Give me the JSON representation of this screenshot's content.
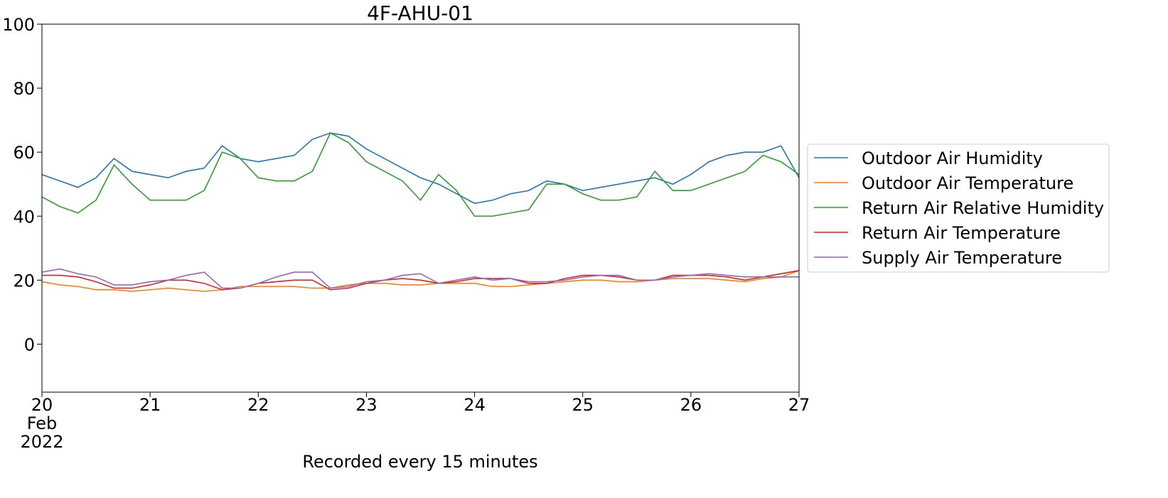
{
  "chart_data": {
    "type": "line",
    "title": "4F-AHU-01",
    "x_label": "Recorded every 15 minutes",
    "x": [
      "2022-02-20 00:00",
      "2022-02-20 04:00",
      "2022-02-20 08:00",
      "2022-02-20 12:00",
      "2022-02-20 16:00",
      "2022-02-20 20:00",
      "2022-02-21 00:00",
      "2022-02-21 04:00",
      "2022-02-21 08:00",
      "2022-02-21 12:00",
      "2022-02-21 16:00",
      "2022-02-21 20:00",
      "2022-02-22 00:00",
      "2022-02-22 04:00",
      "2022-02-22 08:00",
      "2022-02-22 12:00",
      "2022-02-22 16:00",
      "2022-02-22 20:00",
      "2022-02-23 00:00",
      "2022-02-23 04:00",
      "2022-02-23 08:00",
      "2022-02-23 12:00",
      "2022-02-23 16:00",
      "2022-02-23 20:00",
      "2022-02-24 00:00",
      "2022-02-24 04:00",
      "2022-02-24 08:00",
      "2022-02-24 12:00",
      "2022-02-24 16:00",
      "2022-02-24 20:00",
      "2022-02-25 00:00",
      "2022-02-25 04:00",
      "2022-02-25 08:00",
      "2022-02-25 12:00",
      "2022-02-25 16:00",
      "2022-02-25 20:00",
      "2022-02-26 00:00",
      "2022-02-26 04:00",
      "2022-02-26 08:00",
      "2022-02-26 12:00",
      "2022-02-26 16:00",
      "2022-02-26 20:00",
      "2022-02-27 00:00"
    ],
    "series": [
      {
        "name": "Outdoor Air Humidity",
        "color": "#1f77b4",
        "values": [
          53,
          51,
          49,
          52,
          58,
          54,
          53,
          52,
          54,
          55,
          62,
          58,
          57,
          58,
          59,
          64,
          66,
          65,
          61,
          58,
          55,
          52,
          50,
          47,
          44,
          45,
          47,
          48,
          51,
          50,
          48,
          49,
          50,
          51,
          52,
          50,
          53,
          57,
          59,
          60,
          60,
          62,
          52
        ]
      },
      {
        "name": "Outdoor Air Temperature",
        "color": "#ff7f0e",
        "values": [
          19.5,
          18.5,
          18,
          17,
          17,
          16.5,
          17,
          17.5,
          17,
          16.5,
          17,
          18,
          18,
          18,
          18,
          17.5,
          17.5,
          18.5,
          19,
          19,
          18.5,
          18.5,
          19,
          19,
          19,
          18,
          18,
          18.5,
          19,
          19.5,
          20,
          20,
          19.5,
          19.5,
          20,
          20.5,
          20.5,
          20.5,
          20,
          19.5,
          20.5,
          21,
          23
        ]
      },
      {
        "name": "Return Air Relative Humidity",
        "color": "#2ca02c",
        "values": [
          46,
          43,
          41,
          45,
          56,
          50,
          45,
          45,
          45,
          48,
          60,
          58,
          52,
          51,
          51,
          54,
          66,
          63,
          57,
          54,
          51,
          45,
          53,
          48,
          40,
          40,
          41,
          42,
          50,
          50,
          47,
          45,
          45,
          46,
          54,
          48,
          48,
          50,
          52,
          54,
          59,
          57,
          53
        ]
      },
      {
        "name": "Return Air Temperature",
        "color": "#d62728",
        "values": [
          21.5,
          21.5,
          21,
          19.5,
          17.5,
          17.5,
          18.5,
          20,
          20,
          19,
          17,
          17.5,
          19,
          19.5,
          20,
          20,
          17,
          17.5,
          19,
          20,
          20.5,
          20,
          19,
          19.5,
          20.5,
          20.5,
          20.5,
          19,
          19,
          20.5,
          21.5,
          21.5,
          21,
          20,
          20,
          21.5,
          21.5,
          21.5,
          21,
          20,
          21,
          22,
          23
        ]
      },
      {
        "name": "Supply Air Temperature",
        "color": "#9467bd",
        "values": [
          22.5,
          23.5,
          22,
          21,
          18.5,
          18.5,
          19.5,
          20,
          21.5,
          22.5,
          17.5,
          17.5,
          19,
          21,
          22.5,
          22.5,
          17.5,
          18,
          19.5,
          20,
          21.5,
          22,
          19,
          20,
          21,
          20,
          20.5,
          19.5,
          19.5,
          20,
          21,
          21.5,
          21.5,
          20,
          20,
          21,
          21.5,
          22,
          21.5,
          21,
          21,
          21,
          21
        ]
      }
    ],
    "xlim": [
      "2022-02-20 00:00",
      "2022-02-27 00:00"
    ],
    "xticks": [
      {
        "value": "2022-02-20 00:00",
        "label": "20\nFeb\n2022"
      },
      {
        "value": "2022-02-21 00:00",
        "label": "21"
      },
      {
        "value": "2022-02-22 00:00",
        "label": "22"
      },
      {
        "value": "2022-02-23 00:00",
        "label": "23"
      },
      {
        "value": "2022-02-24 00:00",
        "label": "24"
      },
      {
        "value": "2022-02-25 00:00",
        "label": "25"
      },
      {
        "value": "2022-02-26 00:00",
        "label": "26"
      },
      {
        "value": "2022-02-27 00:00",
        "label": "27"
      }
    ],
    "ylim": [
      -15,
      100
    ],
    "yticks": [
      0,
      20,
      40,
      60,
      80,
      100
    ],
    "grid": false,
    "legend": "right"
  }
}
